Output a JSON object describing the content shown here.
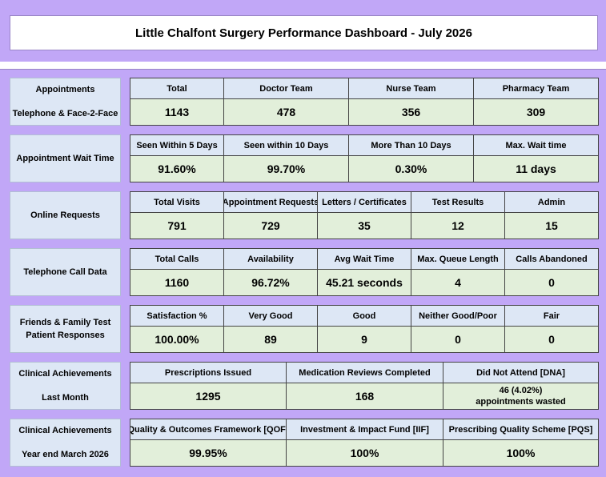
{
  "title": "Little Chalfont Surgery Performance Dashboard - July 2026",
  "sections": [
    {
      "label": [
        "Appointments",
        "Telephone & Face-2-Face"
      ],
      "cells": [
        {
          "header": "Total",
          "value": "1143"
        },
        {
          "header": "Doctor Team",
          "value": "478"
        },
        {
          "header": "Nurse Team",
          "value": "356"
        },
        {
          "header": "Pharmacy Team",
          "value": "309"
        }
      ]
    },
    {
      "label": [
        "Appointment Wait Time"
      ],
      "cells": [
        {
          "header": "Seen Within 5 Days",
          "value": "91.60%"
        },
        {
          "header": "Seen within 10 Days",
          "value": "99.70%"
        },
        {
          "header": "More Than 10 Days",
          "value": "0.30%"
        },
        {
          "header": "Max. Wait time",
          "value": "11 days"
        }
      ]
    },
    {
      "label": [
        "Online Requests"
      ],
      "cells": [
        {
          "header": "Total Visits",
          "value": "791"
        },
        {
          "header": "Appointment Requests",
          "value": "729"
        },
        {
          "header": "Letters / Certificates",
          "value": "35"
        },
        {
          "header": "Test Results",
          "value": "12"
        },
        {
          "header": "Admin",
          "value": "15"
        }
      ]
    },
    {
      "label": [
        "Telephone Call Data"
      ],
      "cells": [
        {
          "header": "Total Calls",
          "value": "1160"
        },
        {
          "header": "Availability",
          "value": "96.72%"
        },
        {
          "header": "Avg Wait Time",
          "value": "45.21 seconds"
        },
        {
          "header": "Max. Queue Length",
          "value": "4"
        },
        {
          "header": "Calls Abandoned",
          "value": "0"
        }
      ]
    },
    {
      "label": [
        "Friends & Family Test",
        "Patient Responses"
      ],
      "cells": [
        {
          "header": "Satisfaction %",
          "value": "100.00%"
        },
        {
          "header": "Very Good",
          "value": "89"
        },
        {
          "header": "Good",
          "value": "9"
        },
        {
          "header": "Neither Good/Poor",
          "value": "0"
        },
        {
          "header": "Fair",
          "value": "0"
        }
      ]
    },
    {
      "label": [
        "Clinical Achievements",
        "Last Month"
      ],
      "cells": [
        {
          "header": "Prescriptions Issued",
          "value": "1295"
        },
        {
          "header": "Medication Reviews Completed",
          "value": "168"
        },
        {
          "header": "Did Not Attend [DNA]",
          "value_line1": "46 (4.02%)",
          "value_line2": "appointments wasted"
        }
      ]
    },
    {
      "label": [
        "Clinical Achievements",
        "Year end March 2026"
      ],
      "cells": [
        {
          "header": "Quality & Outcomes Framework [QOF]",
          "value": "99.95%"
        },
        {
          "header": "Investment & Impact Fund [IIF]",
          "value": "100%"
        },
        {
          "header": "Prescribing Quality Scheme [PQS]",
          "value": "100%"
        }
      ]
    }
  ]
}
